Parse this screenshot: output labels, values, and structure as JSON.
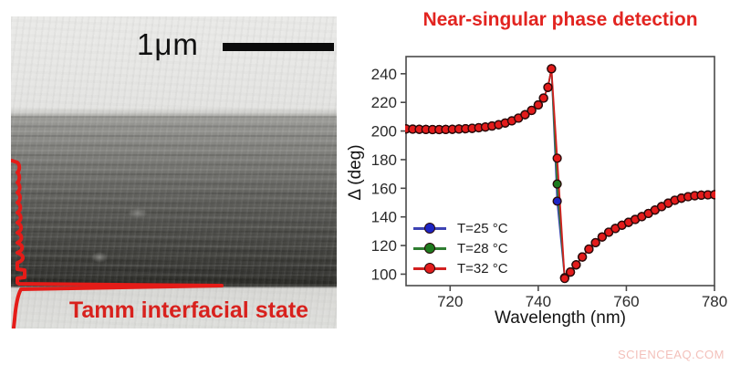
{
  "sem_panel": {
    "scale_bar_label": "1μm",
    "annotation": "Tamm interfacial state",
    "annotation_color": "#d8211d",
    "profile_color": "#e51c18"
  },
  "watermark": {
    "text": "SCIENCEAQ.COM",
    "color": "#f3c0ba"
  },
  "chart_data": {
    "type": "line",
    "title": "Near-singular phase detection",
    "title_color": "#e22420",
    "xlabel": "Wavelength (nm)",
    "ylabel": "Δ (deg)",
    "xlim": [
      710,
      780
    ],
    "ylim": [
      92,
      252
    ],
    "xticks": [
      720,
      740,
      760,
      780
    ],
    "yticks": [
      100,
      120,
      140,
      160,
      180,
      200,
      220,
      240
    ],
    "grid": false,
    "legend_position": "lower-left",
    "axis_color": "#4a4a4a",
    "tick_label_color": "#2b2b2b",
    "marker_edge_color": "#2a0a0a",
    "x": [
      710.0,
      711.5,
      713.0,
      714.5,
      716.0,
      717.5,
      719.0,
      720.5,
      722.0,
      723.5,
      725.0,
      726.5,
      728.0,
      729.5,
      731.0,
      732.5,
      734.0,
      735.5,
      737.0,
      738.5,
      740.0,
      741.2,
      742.2,
      743.0,
      744.3,
      746.0,
      747.3,
      748.6,
      750.0,
      751.5,
      753.0,
      754.5,
      756.0,
      757.5,
      759.0,
      760.5,
      762.0,
      763.5,
      765.0,
      766.5,
      768.0,
      769.5,
      771.0,
      772.5,
      774.0,
      775.5,
      777.0,
      778.5,
      780.0
    ],
    "series": [
      {
        "name": "T=25 °C",
        "line_color": "#3d43b3",
        "marker_color": "#1d24c4",
        "y": [
          201.5,
          201.3,
          201.2,
          201.1,
          201.0,
          201.0,
          201.1,
          201.2,
          201.4,
          201.6,
          201.9,
          202.3,
          202.8,
          203.5,
          204.4,
          205.6,
          207.1,
          209.0,
          211.4,
          214.4,
          218.2,
          223.0,
          230.5,
          243.5,
          151.0,
          97.6,
          101.5,
          106.5,
          112.0,
          117.5,
          122.0,
          126.0,
          129.3,
          131.9,
          134.2,
          136.2,
          138.2,
          140.2,
          142.4,
          144.8,
          147.2,
          149.6,
          151.6,
          153.1,
          154.1,
          154.8,
          155.2,
          155.4,
          155.5
        ]
      },
      {
        "name": "T=28 °C",
        "line_color": "#2f7d31",
        "marker_color": "#1e7b1e",
        "y": [
          201.5,
          201.3,
          201.2,
          201.1,
          201.0,
          201.0,
          201.1,
          201.2,
          201.4,
          201.6,
          201.9,
          202.3,
          202.8,
          203.5,
          204.4,
          205.6,
          207.1,
          209.0,
          211.4,
          214.4,
          218.2,
          223.0,
          230.5,
          243.5,
          163.0,
          97.3,
          101.5,
          106.5,
          112.0,
          117.5,
          122.0,
          126.0,
          129.3,
          131.9,
          134.2,
          136.2,
          138.2,
          140.2,
          142.4,
          144.8,
          147.2,
          149.6,
          151.6,
          153.1,
          154.1,
          154.8,
          155.2,
          155.4,
          155.5
        ]
      },
      {
        "name": "T=32 °C",
        "line_color": "#d22020",
        "marker_color": "#e31b1b",
        "y": [
          201.5,
          201.3,
          201.2,
          201.1,
          201.0,
          201.0,
          201.1,
          201.2,
          201.4,
          201.6,
          201.9,
          202.3,
          202.8,
          203.5,
          204.4,
          205.6,
          207.1,
          209.0,
          211.4,
          214.4,
          218.2,
          223.0,
          230.5,
          243.5,
          181.0,
          97.0,
          101.5,
          106.5,
          112.0,
          117.5,
          122.0,
          126.0,
          129.3,
          131.9,
          134.2,
          136.2,
          138.2,
          140.2,
          142.4,
          144.8,
          147.2,
          149.6,
          151.6,
          153.1,
          154.1,
          154.8,
          155.2,
          155.4,
          155.5
        ]
      }
    ]
  }
}
